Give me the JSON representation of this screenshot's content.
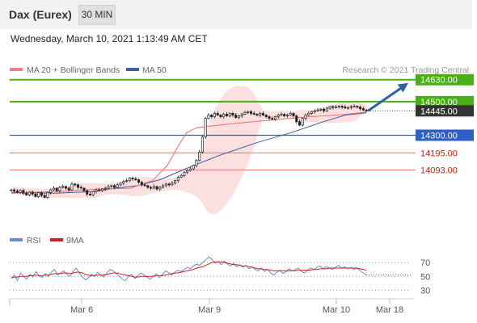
{
  "header": {
    "title": "Dax (Eurex)",
    "timeframe": "30 MIN"
  },
  "datetime": "Wednesday, March 10, 2021 1:13:49 AM CET",
  "legend": {
    "ma20": "MA 20 + Bollinger Bands",
    "ma50": "MA 50"
  },
  "credit": "Research © 2021 Trading Central",
  "colors": {
    "green": "#4caf1a",
    "blue": "#2f5fc4",
    "red_line": "#f08080",
    "red_label": "#cc2200",
    "current_bg": "#333333",
    "candle": "#222222",
    "ma20": "#f07070",
    "ma50": "#3a5fa8",
    "boll": "#fcdcdc",
    "rsi": "#6a8bd8",
    "rsi_ma": "#d22020",
    "arrow": "#2f5fa8"
  },
  "chart_data": [
    {
      "type": "candlestick",
      "title": "Dax (Eurex)",
      "timeframe": "30 MIN",
      "x_ticks": [
        "Mar 6",
        "Mar 9",
        "Mar 10",
        "Mar 18"
      ],
      "ylim": [
        13750,
        14720
      ],
      "levels": [
        {
          "value": 14630,
          "label": "14630.00",
          "kind": "target",
          "color": "#4caf1a"
        },
        {
          "value": 14500,
          "label": "14500.00",
          "kind": "resistance",
          "color": "#4caf1a"
        },
        {
          "value": 14300,
          "label": "14300.00",
          "kind": "pivot",
          "color": "#2f5fc4"
        },
        {
          "value": 14195,
          "label": "14195.00",
          "kind": "support",
          "color": "#f08080"
        },
        {
          "value": 14093,
          "label": "14093.00",
          "kind": "support",
          "color": "#f08080"
        }
      ],
      "current_price": {
        "value": 14445,
        "label": "14445.00"
      },
      "closes": [
        13975,
        13968,
        13960,
        13972,
        13955,
        13945,
        13962,
        13950,
        13935,
        13958,
        13942,
        13930,
        13960,
        13975,
        13985,
        13970,
        13990,
        13995,
        13985,
        13975,
        14010,
        14005,
        13990,
        13985,
        13970,
        13950,
        13945,
        13965,
        13975,
        13970,
        13980,
        13985,
        13995,
        14000,
        13990,
        14005,
        14015,
        14025,
        14030,
        14045,
        14040,
        14035,
        14020,
        14005,
        14000,
        13990,
        13985,
        13995,
        13980,
        13990,
        14000,
        14010,
        14005,
        14015,
        14030,
        14050,
        14060,
        14080,
        14090,
        14100,
        14120,
        14150,
        14200,
        14290,
        14400,
        14420,
        14410,
        14430,
        14420,
        14410,
        14425,
        14415,
        14430,
        14420,
        14405,
        14415,
        14425,
        14435,
        14440,
        14430,
        14425,
        14420,
        14430,
        14420,
        14410,
        14400,
        14395,
        14410,
        14420,
        14425,
        14415,
        14420,
        14430,
        14415,
        14380,
        14360,
        14400,
        14420,
        14430,
        14440,
        14445,
        14450,
        14455,
        14445,
        14460,
        14470,
        14465,
        14468,
        14472,
        14468,
        14462,
        14465,
        14470,
        14472,
        14468,
        14458,
        14450,
        14445
      ],
      "ma20_points": [
        [
          0,
          13955
        ],
        [
          30,
          13965
        ],
        [
          60,
          13980
        ],
        [
          80,
          13985
        ],
        [
          95,
          14030
        ],
        [
          105,
          14120
        ],
        [
          112,
          14230
        ],
        [
          118,
          14315
        ],
        [
          125,
          14345
        ],
        [
          150,
          14370
        ],
        [
          175,
          14390
        ],
        [
          200,
          14410
        ],
        [
          220,
          14420
        ],
        [
          239,
          14438
        ]
      ],
      "ma50_points": [
        [
          0,
          13960
        ],
        [
          30,
          13955
        ],
        [
          55,
          13965
        ],
        [
          70,
          13985
        ],
        [
          85,
          14000
        ],
        [
          100,
          14035
        ],
        [
          120,
          14110
        ],
        [
          140,
          14180
        ],
        [
          165,
          14255
        ],
        [
          190,
          14320
        ],
        [
          210,
          14380
        ],
        [
          225,
          14420
        ],
        [
          239,
          14433
        ]
      ],
      "projection": {
        "from": 14445,
        "to": 14630
      }
    },
    {
      "type": "line",
      "title": "RSI",
      "series": [
        {
          "name": "RSI",
          "values": [
            47,
            52,
            44,
            55,
            50,
            46,
            53,
            49,
            57,
            51,
            48,
            54,
            50,
            56,
            60,
            52,
            55,
            58,
            53,
            50,
            57,
            62,
            55,
            50,
            45,
            48,
            53,
            50,
            56,
            52,
            49,
            55,
            60,
            58,
            54,
            50,
            46,
            44,
            50,
            53,
            47,
            51,
            55,
            52,
            49,
            46,
            50,
            54,
            48,
            53,
            58,
            55,
            52,
            56,
            59,
            57,
            60,
            63,
            61,
            65,
            68,
            66,
            70,
            74,
            78,
            75,
            69,
            71,
            67,
            72,
            68,
            65,
            69,
            64,
            67,
            63,
            66,
            61,
            64,
            60,
            58,
            62,
            57,
            60,
            55,
            52,
            56,
            59,
            54,
            57,
            61,
            58,
            60,
            62,
            57,
            55,
            59,
            62,
            60,
            63,
            65,
            61,
            64,
            62,
            60,
            63,
            66,
            62,
            64,
            61,
            63,
            60,
            62,
            58,
            55,
            52
          ]
        },
        {
          "name": "9MA",
          "values": [
            48,
            49,
            49,
            50,
            50,
            50,
            51,
            51,
            52,
            51,
            51,
            52,
            52,
            53,
            54,
            54,
            54,
            55,
            55,
            54,
            55,
            56,
            56,
            55,
            53,
            52,
            51,
            51,
            52,
            52,
            52,
            53,
            54,
            55,
            55,
            54,
            53,
            52,
            51,
            50,
            49,
            49,
            50,
            50,
            50,
            50,
            50,
            51,
            51,
            51,
            52,
            53,
            54,
            55,
            55,
            56,
            57,
            58,
            59,
            60,
            62,
            63,
            64,
            66,
            68,
            70,
            71,
            71,
            71,
            70,
            69,
            68,
            67,
            67,
            66,
            65,
            65,
            64,
            63,
            62,
            61,
            61,
            60,
            60,
            59,
            58,
            58,
            58,
            58,
            58,
            58,
            58,
            58,
            59,
            59,
            59,
            59,
            59,
            60,
            60,
            61,
            61,
            61,
            62,
            62,
            62,
            62,
            62,
            62,
            62,
            62,
            62,
            62,
            61,
            60,
            59
          ]
        }
      ],
      "ylim": [
        20,
        90
      ],
      "levels": [
        70,
        50,
        30
      ],
      "level_labels": [
        "70",
        "50",
        "30"
      ]
    }
  ]
}
